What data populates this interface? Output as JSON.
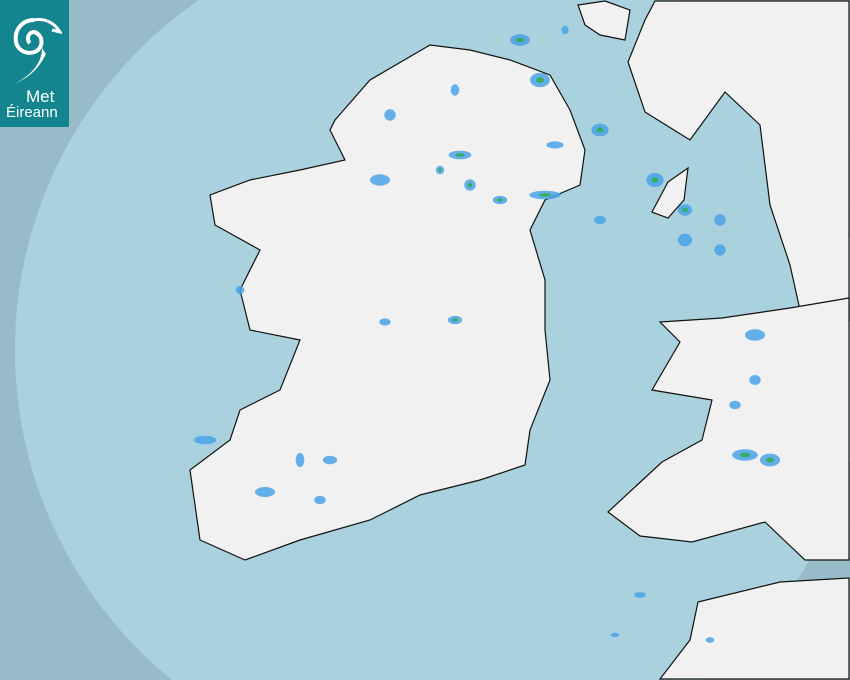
{
  "logo": {
    "line1": "Met",
    "line2": "Éireann"
  },
  "map": {
    "type": "precipitation-radar",
    "colors": {
      "outside_coverage": "#97bcc7",
      "sea": "#a9d2de",
      "land": "#f2f2f2",
      "rain_light": "#4aa3e8",
      "rain_moderate": "#2fae4a"
    }
  }
}
